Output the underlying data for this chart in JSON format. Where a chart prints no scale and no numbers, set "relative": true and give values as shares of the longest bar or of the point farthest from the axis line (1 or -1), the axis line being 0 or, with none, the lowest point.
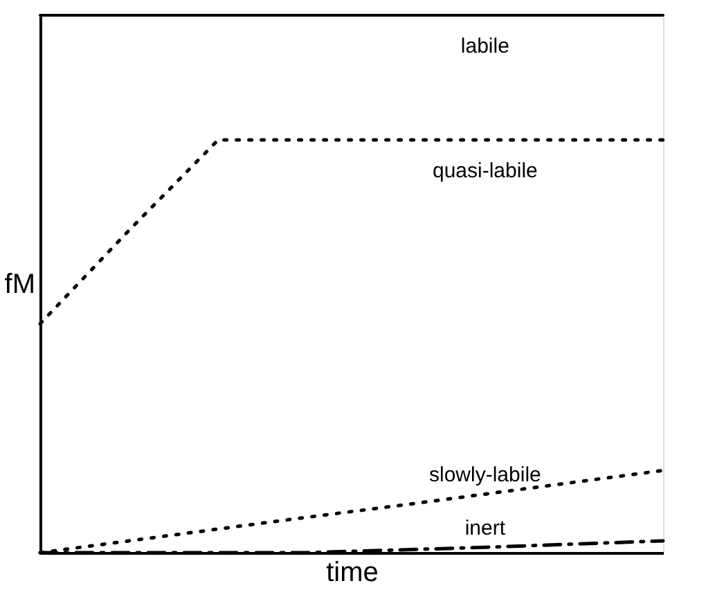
{
  "chart_data": {
    "type": "line",
    "relative": true,
    "xlabel": "time",
    "ylabel": "fM",
    "categories": [
      null,
      null,
      null,
      null,
      null,
      null,
      null,
      null
    ],
    "tick_labels": false,
    "grid": false,
    "series": [
      {
        "name": "labile",
        "color": "#000000",
        "line_style": "solid",
        "values": [
          1,
          1,
          1,
          1,
          1,
          1,
          1,
          1
        ]
      },
      {
        "name": "quasi-labile",
        "color": "#000000",
        "line_style": "dotted",
        "values": [
          0.426,
          0.6,
          0.768,
          0.768,
          0.768,
          0.768,
          0.768,
          0.768
        ]
      },
      {
        "name": "slowly-labile",
        "color": "#000000",
        "line_style": "dotted",
        "values": [
          0,
          0.022,
          0.044,
          0.066,
          0.087,
          0.109,
          0.131,
          0.153
        ]
      },
      {
        "name": "inert",
        "color": "#000000",
        "line_style": "dashed",
        "values": [
          0,
          0,
          0,
          0,
          0.005,
          0.01,
          0.016,
          0.022
        ]
      }
    ]
  }
}
